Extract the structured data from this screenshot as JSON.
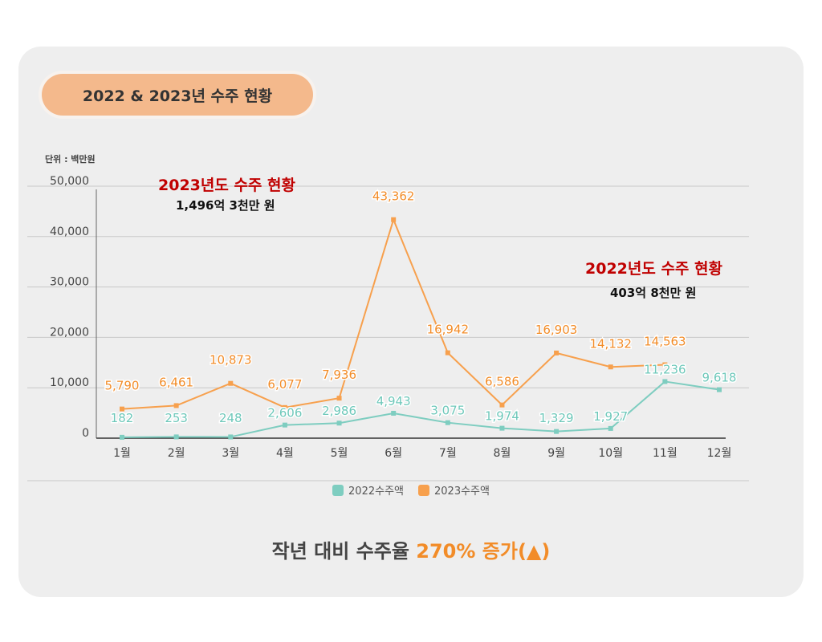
{
  "header": {
    "title": "2022 & 2023년 수주 현황"
  },
  "unit_label": "단위 : 백만원",
  "annotations": {
    "a2023": {
      "title": "2023년도 수주 현황",
      "sub": "1,496억 3천만 원"
    },
    "a2022": {
      "title": "2022년도 수주 현황",
      "sub": "403억 8천만 원"
    }
  },
  "footer": {
    "prefix": "작년 대비 수주율 ",
    "highlight": "270% 증가(▲)"
  },
  "colors": {
    "series2022": "#7ecdc0",
    "series2023": "#f7a04d",
    "grid": "#c8c8c8"
  },
  "chart_data": {
    "type": "line",
    "categories": [
      "1월",
      "2월",
      "3월",
      "4월",
      "5월",
      "6월",
      "7월",
      "8월",
      "9월",
      "10월",
      "11월",
      "12월"
    ],
    "yticks": [
      "0",
      "10,000",
      "20,000",
      "30,000",
      "40,000",
      "50,000"
    ],
    "ylim": [
      0,
      50000
    ],
    "series": [
      {
        "name": "2022수주액",
        "values": [
          182,
          253,
          248,
          2606,
          2986,
          4943,
          3075,
          1974,
          1329,
          1927,
          11236,
          9618
        ],
        "labels": [
          "182",
          "253",
          "248",
          "2,606",
          "2,986",
          "4,943",
          "3,075",
          "1,974",
          "1,329",
          "1,927",
          "11,236",
          "9,618"
        ]
      },
      {
        "name": "2023수주액",
        "values": [
          5790,
          6461,
          10873,
          6077,
          7936,
          43362,
          16942,
          6586,
          16903,
          14132,
          14563,
          null
        ],
        "labels": [
          "5,790",
          "6,461",
          "10,873",
          "6,077",
          "7,936",
          "43,362",
          "16,942",
          "6,586",
          "16,903",
          "14,132",
          "14,563",
          null
        ]
      }
    ],
    "legend_position": "bottom",
    "grid": true
  }
}
